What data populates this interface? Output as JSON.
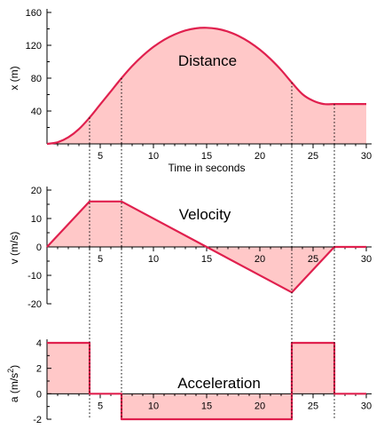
{
  "colors": {
    "curve": "#e0204e",
    "fill": "#ffc8c8"
  },
  "chart_data": [
    {
      "type": "area",
      "title": "Distance",
      "xlabel": "Time in seconds",
      "ylabel": "x (m)",
      "xlim": [
        0,
        30
      ],
      "ylim": [
        0,
        160
      ],
      "xticks": [
        5,
        10,
        15,
        20,
        25,
        30
      ],
      "yticks": [
        40,
        80,
        120,
        160
      ],
      "x": [
        0,
        1,
        2,
        3,
        4,
        5,
        6,
        7,
        8,
        9,
        10,
        11,
        12,
        13,
        14,
        15,
        16,
        17,
        18,
        19,
        20,
        21,
        22,
        23,
        24,
        25,
        26,
        27,
        28,
        29,
        30
      ],
      "values": [
        0,
        2,
        8,
        18,
        32,
        48,
        64,
        80,
        94.7,
        107.3,
        118,
        126.7,
        133.3,
        138,
        140.7,
        141.3,
        140,
        136.7,
        131.3,
        124,
        114.7,
        103.3,
        90,
        74.7,
        60.5,
        52.5,
        48.5,
        48.5,
        48.5,
        48.5,
        48.5
      ]
    },
    {
      "type": "area",
      "title": "Velocity",
      "xlabel": "",
      "ylabel": "v (m/s)",
      "xlim": [
        0,
        30
      ],
      "ylim": [
        -20,
        20
      ],
      "xticks": [
        5,
        10,
        15,
        20,
        25,
        30
      ],
      "yticks": [
        20,
        10,
        0,
        -10,
        -20
      ],
      "x": [
        0,
        4,
        7,
        15,
        23,
        27,
        30
      ],
      "values": [
        0,
        16,
        16,
        0,
        -16,
        0,
        0
      ]
    },
    {
      "type": "area",
      "title": "Acceleration",
      "xlabel": "",
      "ylabel_main": "a (m/s",
      "ylabel_exp": "2",
      "ylabel_close": ")",
      "xlim": [
        0,
        30
      ],
      "ylim": [
        -2,
        4
      ],
      "xticks": [
        5,
        10,
        15,
        20,
        25,
        30
      ],
      "yticks": [
        4,
        2,
        0,
        -2
      ],
      "x": [
        0,
        4,
        4,
        7,
        7,
        23,
        23,
        27,
        27,
        30
      ],
      "values": [
        4,
        4,
        0,
        0,
        -2,
        -2,
        4,
        4,
        0,
        0
      ]
    }
  ],
  "guide_times": [
    4,
    7,
    23,
    27
  ]
}
